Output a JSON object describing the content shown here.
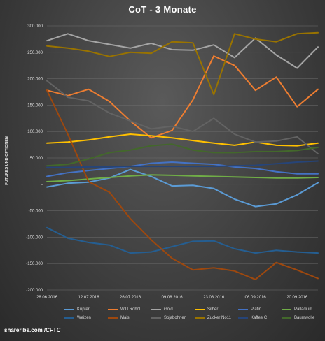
{
  "chart_data": {
    "type": "line",
    "title": "CoT - 3 Monate",
    "ylabel": "FUTURES UND OPTIONEN",
    "ylim": [
      -200000,
      300000
    ],
    "yticks": [
      "300.000",
      "250.000",
      "200.000",
      "150.000",
      "100.000",
      "50.000",
      "-",
      "-50.000",
      "-100.000",
      "-150.000",
      "-200.000"
    ],
    "ytick_values": [
      300000,
      250000,
      200000,
      150000,
      100000,
      50000,
      0,
      -50000,
      -100000,
      -150000,
      -200000
    ],
    "x": [
      "28.06.2016",
      "05.07.2016",
      "12.07.2016",
      "19.07.2016",
      "26.07.2016",
      "02.08.2016",
      "09.08.2016",
      "16.08.2016",
      "23.08.2016",
      "30.08.2016",
      "06.09.2016",
      "13.09.2016",
      "20.09.2016",
      "27.09.2016"
    ],
    "xticks": [
      "28.06.2016",
      "12.07.2016",
      "26.07.2016",
      "09.08.2016",
      "23.08.2016",
      "06.09.2016",
      "20.09.2016"
    ],
    "grid": true,
    "legend_position": "bottom",
    "series": [
      {
        "name": "Kupfer",
        "color": "#5b9bd5",
        "values": [
          -5000,
          2000,
          4000,
          12000,
          28000,
          15000,
          -3000,
          -2000,
          -8000,
          -28000,
          -42000,
          -37000,
          -20000,
          3000
        ]
      },
      {
        "name": "WTI Rohöl",
        "color": "#ed7d31",
        "values": [
          178000,
          168000,
          180000,
          157000,
          120000,
          88000,
          102000,
          160000,
          243000,
          225000,
          178000,
          203000,
          147000,
          180000
        ]
      },
      {
        "name": "Gold",
        "color": "#a5a5a5",
        "values": [
          272000,
          285000,
          272000,
          265000,
          258000,
          267000,
          255000,
          254000,
          264000,
          240000,
          277000,
          245000,
          220000,
          260000
        ]
      },
      {
        "name": "Silber",
        "color": "#ffc000",
        "values": [
          78000,
          80000,
          84000,
          90000,
          95000,
          92000,
          88000,
          83000,
          78000,
          74000,
          80000,
          74000,
          73000,
          78000
        ]
      },
      {
        "name": "Platin",
        "color": "#4472c4",
        "values": [
          15000,
          22000,
          26000,
          30000,
          34000,
          40000,
          42000,
          40000,
          38000,
          33000,
          30000,
          24000,
          20000,
          20000
        ]
      },
      {
        "name": "Palladium",
        "color": "#70ad47",
        "values": [
          5000,
          7000,
          10000,
          13000,
          16000,
          18000,
          17000,
          16000,
          15000,
          14000,
          13000,
          12000,
          12000,
          13000
        ]
      },
      {
        "name": "Weizen",
        "color": "#255e91",
        "values": [
          -82000,
          -102000,
          -110000,
          -115000,
          -130000,
          -128000,
          -118000,
          -108000,
          -107000,
          -122000,
          -130000,
          -125000,
          -128000,
          -130000
        ]
      },
      {
        "name": "Mais",
        "color": "#9e480e",
        "values": [
          178000,
          95000,
          5000,
          -15000,
          -65000,
          -105000,
          -140000,
          -162000,
          -158000,
          -164000,
          -180000,
          -148000,
          -162000,
          -178000
        ]
      },
      {
        "name": "Sojabohnen",
        "color": "#636363",
        "values": [
          196000,
          165000,
          158000,
          135000,
          120000,
          105000,
          110000,
          100000,
          125000,
          95000,
          80000,
          82000,
          90000,
          58000
        ]
      },
      {
        "name": "Zucker No11",
        "color": "#997300",
        "values": [
          262000,
          258000,
          252000,
          242000,
          250000,
          248000,
          270000,
          268000,
          170000,
          285000,
          275000,
          270000,
          285000,
          287000
        ]
      },
      {
        "name": "Kaffee C",
        "color": "#264478",
        "values": [
          32000,
          32000,
          33000,
          33000,
          34000,
          34000,
          34000,
          34000,
          34000,
          35000,
          36000,
          39000,
          42000,
          44000
        ]
      },
      {
        "name": "Baumwolle",
        "color": "#43682b",
        "values": [
          35000,
          38000,
          48000,
          60000,
          65000,
          73000,
          76000,
          65000,
          60000,
          60000,
          62000,
          62000,
          64000,
          70000
        ]
      }
    ]
  },
  "footer": {
    "text": "shareribs.com /CFTC"
  }
}
